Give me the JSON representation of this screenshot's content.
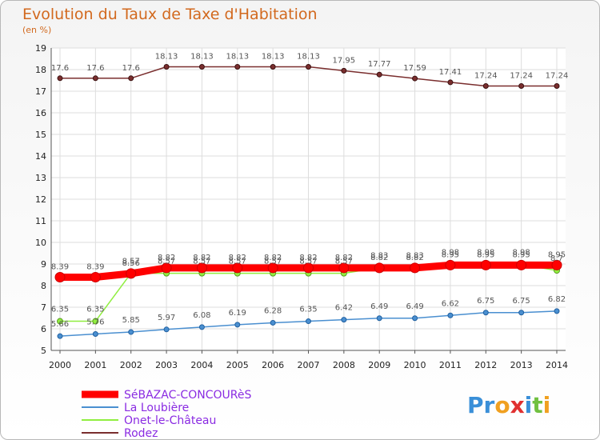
{
  "header": {
    "title": "Evolution du Taux de Taxe d'Habitation",
    "subtitle": "(en %)"
  },
  "logo": "Proxiti",
  "colors": {
    "title": "#d2691e",
    "legend_text": "#8a2be2",
    "grid": "#dddddd"
  },
  "chart_data": {
    "type": "line",
    "title": "Evolution du Taux de Taxe d'Habitation",
    "ylabel": "(en %)",
    "xlabel": "",
    "x": [
      2000,
      2001,
      2002,
      2003,
      2004,
      2005,
      2006,
      2007,
      2008,
      2009,
      2010,
      2011,
      2012,
      2013,
      2014
    ],
    "ylim": [
      5,
      19
    ],
    "yticks": [
      5,
      6,
      7,
      8,
      9,
      10,
      11,
      12,
      13,
      14,
      15,
      16,
      17,
      18,
      19
    ],
    "grid": true,
    "legend_position": "bottom-left",
    "series": [
      {
        "name": "SéBAZAC-CONCOURèS",
        "color": "#ff0000",
        "values": [
          8.39,
          8.39,
          8.56,
          8.82,
          8.82,
          8.82,
          8.82,
          8.82,
          8.82,
          8.82,
          8.82,
          8.95,
          8.95,
          8.95,
          8.95
        ],
        "labels": [
          "8.39",
          "8.39",
          "8.56",
          "8.82",
          "8.82",
          "8.82",
          "8.82",
          "8.82",
          "8.82",
          "8.82",
          "8.82",
          "8.95",
          "8.95",
          "8.95",
          "8.95"
        ]
      },
      {
        "name": "La Loubière",
        "color": "#4a8fd0",
        "values": [
          5.66,
          5.76,
          5.85,
          5.97,
          6.08,
          6.19,
          6.28,
          6.35,
          6.42,
          6.49,
          6.49,
          6.62,
          6.75,
          6.75,
          6.82
        ],
        "labels": [
          "5.66",
          "5.76",
          "5.85",
          "5.97",
          "6.08",
          "6.19",
          "6.28",
          "6.35",
          "6.42",
          "6.49",
          "6.49",
          "6.62",
          "6.75",
          "6.75",
          "6.82"
        ]
      },
      {
        "name": "Onet-le-Château",
        "color": "#90ee40",
        "values": [
          6.35,
          6.35,
          8.57,
          8.57,
          8.57,
          8.57,
          8.57,
          8.57,
          8.57,
          8.83,
          8.83,
          8.98,
          8.98,
          8.98,
          8.7
        ],
        "labels": [
          "6.35",
          "6.35",
          "8.57",
          "8.57",
          "8.57",
          "8.57",
          "8.57",
          "8.57",
          "8.57",
          "8.83",
          "8.83",
          "8.98",
          "8.98",
          "8.98",
          "8.7"
        ]
      },
      {
        "name": "Rodez",
        "color": "#7a2e2e",
        "values": [
          17.6,
          17.6,
          17.6,
          18.13,
          18.13,
          18.13,
          18.13,
          18.13,
          17.95,
          17.77,
          17.59,
          17.41,
          17.24,
          17.24,
          17.24
        ],
        "labels": [
          "17.6",
          "17.6",
          "17.6",
          "18.13",
          "18.13",
          "18.13",
          "18.13",
          "18.13",
          "17.95",
          "17.77",
          "17.59",
          "17.41",
          "17.24",
          "17.24",
          "17.24"
        ]
      }
    ]
  }
}
